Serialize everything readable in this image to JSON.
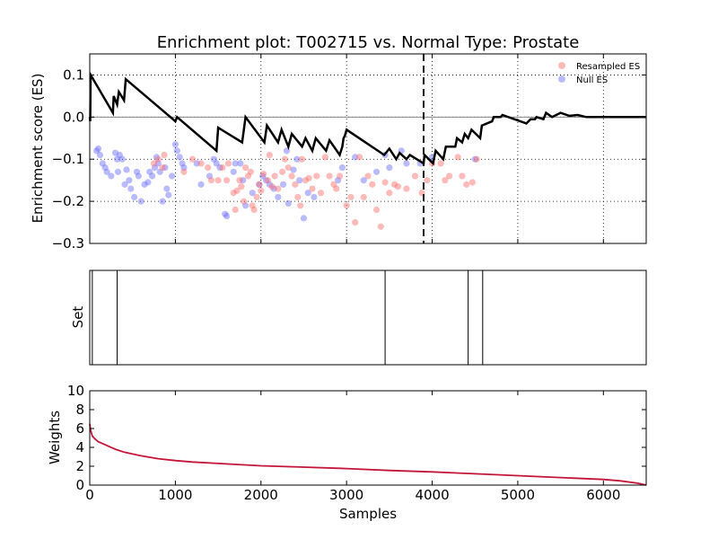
{
  "chart_data": {
    "type": "enrichment-plot",
    "title": "Enrichment plot: T002715 vs. Normal Type: Prostate",
    "xlabel": "Samples",
    "xlim": [
      0,
      6500
    ],
    "xticks": [
      "0",
      "1000",
      "2000",
      "3000",
      "4000",
      "5000",
      "6000"
    ],
    "panels": [
      {
        "name": "enrichment-score",
        "ylabel": "Enrichment score (ES)",
        "ylim": [
          -0.3,
          0.15
        ],
        "yticks": [
          {
            "v": 0.1,
            "label": "0.1"
          },
          {
            "v": 0.0,
            "label": "0.0"
          },
          {
            "v": -0.1,
            "label": "−0.1"
          },
          {
            "v": -0.2,
            "label": "−0.2"
          },
          {
            "v": -0.3,
            "label": "−0.3"
          }
        ],
        "grid": true,
        "max_deviation_x": 3900,
        "legend": {
          "position": "top-right",
          "entries": [
            {
              "label": "Resampled ES",
              "color": "#ff6666"
            },
            {
              "label": "Null ES",
              "color": "#6666ff"
            }
          ]
        },
        "es_curve": [
          [
            0,
            0
          ],
          [
            5,
            -0.01
          ],
          [
            10,
            0.1
          ],
          [
            270,
            0.01
          ],
          [
            280,
            0.05
          ],
          [
            320,
            0.03
          ],
          [
            340,
            0.06
          ],
          [
            400,
            0.04
          ],
          [
            420,
            0.09
          ],
          [
            1000,
            -0.01
          ],
          [
            1020,
            0.0
          ],
          [
            1480,
            -0.08
          ],
          [
            1500,
            -0.025
          ],
          [
            1780,
            -0.06
          ],
          [
            1820,
            0.0
          ],
          [
            2040,
            -0.06
          ],
          [
            2070,
            -0.02
          ],
          [
            2200,
            -0.06
          ],
          [
            2240,
            -0.03
          ],
          [
            2320,
            -0.07
          ],
          [
            2360,
            -0.04
          ],
          [
            2480,
            -0.07
          ],
          [
            2520,
            -0.05
          ],
          [
            2600,
            -0.08
          ],
          [
            2640,
            -0.05
          ],
          [
            2760,
            -0.08
          ],
          [
            2800,
            -0.055
          ],
          [
            2920,
            -0.09
          ],
          [
            2950,
            -0.07
          ],
          [
            2965,
            -0.05
          ],
          [
            2980,
            -0.045
          ],
          [
            3000,
            -0.03
          ],
          [
            3440,
            -0.09
          ],
          [
            3500,
            -0.075
          ],
          [
            3580,
            -0.1
          ],
          [
            3620,
            -0.085
          ],
          [
            3700,
            -0.1
          ],
          [
            3740,
            -0.09
          ],
          [
            3900,
            -0.11
          ],
          [
            3910,
            -0.09
          ],
          [
            4010,
            -0.11
          ],
          [
            4040,
            -0.08
          ],
          [
            4130,
            -0.1
          ],
          [
            4160,
            -0.07
          ],
          [
            4270,
            -0.07
          ],
          [
            4290,
            -0.05
          ],
          [
            4350,
            -0.06
          ],
          [
            4380,
            -0.04
          ],
          [
            4420,
            -0.05
          ],
          [
            4460,
            -0.03
          ],
          [
            4560,
            -0.05
          ],
          [
            4580,
            -0.02
          ],
          [
            4700,
            -0.01
          ],
          [
            4720,
            0.0
          ],
          [
            4800,
            0.0
          ],
          [
            4820,
            0.005
          ],
          [
            5100,
            -0.015
          ],
          [
            5150,
            -0.005
          ],
          [
            5200,
            -0.005
          ],
          [
            5220,
            0.0
          ],
          [
            5300,
            -0.005
          ],
          [
            5330,
            0.01
          ],
          [
            5400,
            0.0
          ],
          [
            5450,
            0.005
          ],
          [
            5500,
            0.01
          ],
          [
            5600,
            0.003
          ],
          [
            5700,
            0.005
          ],
          [
            5800,
            0.0
          ],
          [
            6000,
            0.0
          ],
          [
            6500,
            0.0
          ]
        ],
        "null_es": [
          [
            80,
            -0.08
          ],
          [
            100,
            -0.075
          ],
          [
            120,
            -0.09
          ],
          [
            150,
            -0.11
          ],
          [
            180,
            -0.12
          ],
          [
            200,
            -0.13
          ],
          [
            250,
            -0.14
          ],
          [
            300,
            -0.085
          ],
          [
            320,
            -0.1
          ],
          [
            330,
            -0.13
          ],
          [
            350,
            -0.09
          ],
          [
            380,
            -0.1
          ],
          [
            410,
            -0.16
          ],
          [
            430,
            -0.125
          ],
          [
            460,
            -0.15
          ],
          [
            480,
            -0.17
          ],
          [
            520,
            -0.19
          ],
          [
            550,
            -0.13
          ],
          [
            570,
            -0.14
          ],
          [
            600,
            -0.2
          ],
          [
            640,
            -0.16
          ],
          [
            680,
            -0.155
          ],
          [
            700,
            -0.13
          ],
          [
            730,
            -0.14
          ],
          [
            760,
            -0.12
          ],
          [
            780,
            -0.095
          ],
          [
            800,
            -0.11
          ],
          [
            820,
            -0.13
          ],
          [
            850,
            -0.2
          ],
          [
            880,
            -0.12
          ],
          [
            900,
            -0.17
          ],
          [
            920,
            -0.185
          ],
          [
            960,
            -0.14
          ],
          [
            1000,
            -0.065
          ],
          [
            1020,
            -0.08
          ],
          [
            1050,
            -0.095
          ],
          [
            1080,
            -0.11
          ],
          [
            1100,
            -0.12
          ],
          [
            1250,
            -0.11
          ],
          [
            1300,
            -0.16
          ],
          [
            1400,
            -0.14
          ],
          [
            1450,
            -0.1
          ],
          [
            1480,
            -0.11
          ],
          [
            1520,
            -0.12
          ],
          [
            1580,
            -0.23
          ],
          [
            1600,
            -0.235
          ],
          [
            1680,
            -0.13
          ],
          [
            1700,
            -0.11
          ],
          [
            1760,
            -0.11
          ],
          [
            1790,
            -0.15
          ],
          [
            1820,
            -0.21
          ],
          [
            1900,
            -0.18
          ],
          [
            1980,
            -0.16
          ],
          [
            2020,
            -0.14
          ],
          [
            2060,
            -0.15
          ],
          [
            2100,
            -0.16
          ],
          [
            2150,
            -0.17
          ],
          [
            2200,
            -0.19
          ],
          [
            2260,
            -0.16
          ],
          [
            2300,
            -0.08
          ],
          [
            2320,
            -0.205
          ],
          [
            2380,
            -0.125
          ],
          [
            2420,
            -0.1
          ],
          [
            2450,
            -0.15
          ],
          [
            2500,
            -0.24
          ],
          [
            2550,
            -0.18
          ],
          [
            2620,
            -0.19
          ],
          [
            2900,
            -0.15
          ],
          [
            2950,
            -0.12
          ],
          [
            3100,
            -0.095
          ],
          [
            3200,
            -0.15
          ],
          [
            3350,
            -0.13
          ],
          [
            3450,
            -0.09
          ],
          [
            3500,
            -0.12
          ],
          [
            3640,
            -0.08
          ],
          [
            3700,
            -0.11
          ],
          [
            3860,
            -0.11
          ],
          [
            4000,
            -0.095
          ],
          [
            4500,
            -0.1
          ]
        ],
        "resampled_es": [
          [
            750,
            -0.11
          ],
          [
            800,
            -0.1
          ],
          [
            850,
            -0.12
          ],
          [
            870,
            -0.09
          ],
          [
            1100,
            -0.13
          ],
          [
            1200,
            -0.1
          ],
          [
            1300,
            -0.11
          ],
          [
            1380,
            -0.12
          ],
          [
            1420,
            -0.15
          ],
          [
            1500,
            -0.15
          ],
          [
            1550,
            -0.12
          ],
          [
            1600,
            -0.15
          ],
          [
            1620,
            -0.11
          ],
          [
            1680,
            -0.18
          ],
          [
            1700,
            -0.22
          ],
          [
            1720,
            -0.175
          ],
          [
            1750,
            -0.15
          ],
          [
            1770,
            -0.165
          ],
          [
            1800,
            -0.2
          ],
          [
            1820,
            -0.12
          ],
          [
            1850,
            -0.14
          ],
          [
            1880,
            -0.13
          ],
          [
            1900,
            -0.21
          ],
          [
            1920,
            -0.22
          ],
          [
            1950,
            -0.19
          ],
          [
            1980,
            -0.16
          ],
          [
            2000,
            -0.175
          ],
          [
            2030,
            -0.135
          ],
          [
            2080,
            -0.15
          ],
          [
            2100,
            -0.09
          ],
          [
            2130,
            -0.165
          ],
          [
            2160,
            -0.14
          ],
          [
            2200,
            -0.17
          ],
          [
            2250,
            -0.13
          ],
          [
            2280,
            -0.1
          ],
          [
            2320,
            -0.12
          ],
          [
            2360,
            -0.14
          ],
          [
            2400,
            -0.16
          ],
          [
            2430,
            -0.19
          ],
          [
            2460,
            -0.21
          ],
          [
            2480,
            -0.1
          ],
          [
            2520,
            -0.15
          ],
          [
            2560,
            -0.145
          ],
          [
            2600,
            -0.17
          ],
          [
            2650,
            -0.14
          ],
          [
            2700,
            -0.18
          ],
          [
            2750,
            -0.095
          ],
          [
            2800,
            -0.14
          ],
          [
            2850,
            -0.16
          ],
          [
            2880,
            -0.17
          ],
          [
            2920,
            -0.14
          ],
          [
            3000,
            -0.21
          ],
          [
            3050,
            -0.19
          ],
          [
            3100,
            -0.25
          ],
          [
            3150,
            -0.095
          ],
          [
            3200,
            -0.19
          ],
          [
            3250,
            -0.14
          ],
          [
            3300,
            -0.16
          ],
          [
            3350,
            -0.22
          ],
          [
            3400,
            -0.26
          ],
          [
            3450,
            -0.155
          ],
          [
            3500,
            -0.18
          ],
          [
            3560,
            -0.16
          ],
          [
            3600,
            -0.165
          ],
          [
            3700,
            -0.17
          ],
          [
            3800,
            -0.14
          ],
          [
            3880,
            -0.18
          ],
          [
            3940,
            -0.15
          ],
          [
            4000,
            -0.11
          ],
          [
            4100,
            -0.11
          ],
          [
            4150,
            -0.15
          ],
          [
            4200,
            -0.14
          ],
          [
            4300,
            -0.095
          ],
          [
            4350,
            -0.14
          ],
          [
            4400,
            -0.16
          ],
          [
            4470,
            -0.155
          ],
          [
            4520,
            -0.1
          ]
        ]
      },
      {
        "name": "set-membership",
        "ylabel": "Set",
        "hits": [
          30,
          320,
          3450,
          4420,
          4590
        ]
      },
      {
        "name": "weights",
        "ylabel": "Weights",
        "ylim": [
          0,
          10
        ],
        "yticks": [
          {
            "v": 0,
            "label": "0"
          },
          {
            "v": 2,
            "label": "2"
          },
          {
            "v": 4,
            "label": "4"
          },
          {
            "v": 6,
            "label": "6"
          },
          {
            "v": 8,
            "label": "8"
          },
          {
            "v": 10,
            "label": "10"
          }
        ],
        "line_color": "#c4163a",
        "curve": [
          [
            0,
            6.5
          ],
          [
            10,
            5.8
          ],
          [
            30,
            5.2
          ],
          [
            60,
            4.9
          ],
          [
            100,
            4.6
          ],
          [
            200,
            4.2
          ],
          [
            300,
            3.8
          ],
          [
            400,
            3.5
          ],
          [
            500,
            3.3
          ],
          [
            600,
            3.1
          ],
          [
            800,
            2.8
          ],
          [
            1000,
            2.6
          ],
          [
            1200,
            2.45
          ],
          [
            1500,
            2.3
          ],
          [
            2000,
            2.05
          ],
          [
            2500,
            1.9
          ],
          [
            3000,
            1.75
          ],
          [
            3500,
            1.55
          ],
          [
            4000,
            1.4
          ],
          [
            4500,
            1.2
          ],
          [
            5000,
            1.0
          ],
          [
            5500,
            0.8
          ],
          [
            6000,
            0.6
          ],
          [
            6200,
            0.45
          ],
          [
            6400,
            0.2
          ],
          [
            6500,
            0.0
          ]
        ]
      }
    ]
  }
}
